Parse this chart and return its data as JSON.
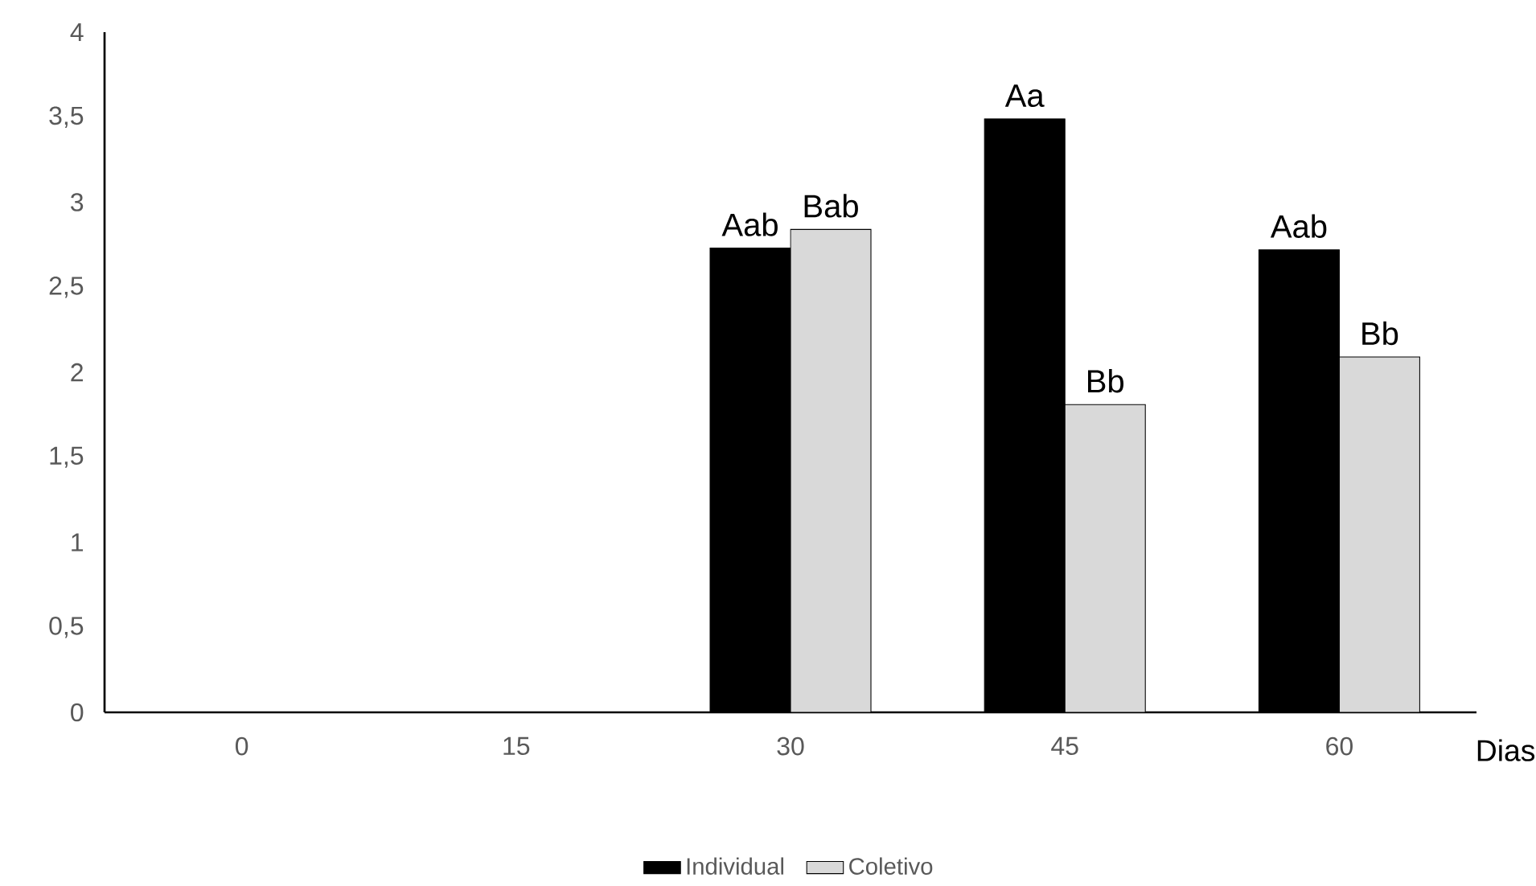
{
  "chart_data": {
    "type": "bar",
    "xlabel": "Dias",
    "categories": [
      "0",
      "15",
      "30",
      "45",
      "60"
    ],
    "series": [
      {
        "name": "Individual",
        "color": "#000000",
        "values": [
          null,
          null,
          2.73,
          3.49,
          2.72
        ]
      },
      {
        "name": "Coletivo",
        "color": "#d9d9d9",
        "values": [
          null,
          null,
          2.84,
          1.81,
          2.09
        ]
      }
    ],
    "ylim": [
      0,
      4
    ],
    "yticks": [
      0,
      {
        "value": 0.5,
        "label": "0,5"
      },
      1,
      {
        "value": 1.5,
        "label": "1,5"
      },
      2,
      {
        "value": 2.5,
        "label": "2,5"
      },
      3,
      {
        "value": 3.5,
        "label": "3,5"
      },
      4
    ],
    "annotations": [
      {
        "text": "Aab",
        "x": "30",
        "y": 2.73
      },
      {
        "text": "Bab",
        "x": "30",
        "y": 2.84
      },
      {
        "text": "Aa",
        "x": "45",
        "y": 3.49
      },
      {
        "text": "Bb",
        "x": "45",
        "y": 1.81
      },
      {
        "text": "Aab",
        "x": "60",
        "y": 2.72
      },
      {
        "text": "Bb",
        "x": "60",
        "y": 2.09
      }
    ],
    "grid": false,
    "legend": "bottom"
  }
}
